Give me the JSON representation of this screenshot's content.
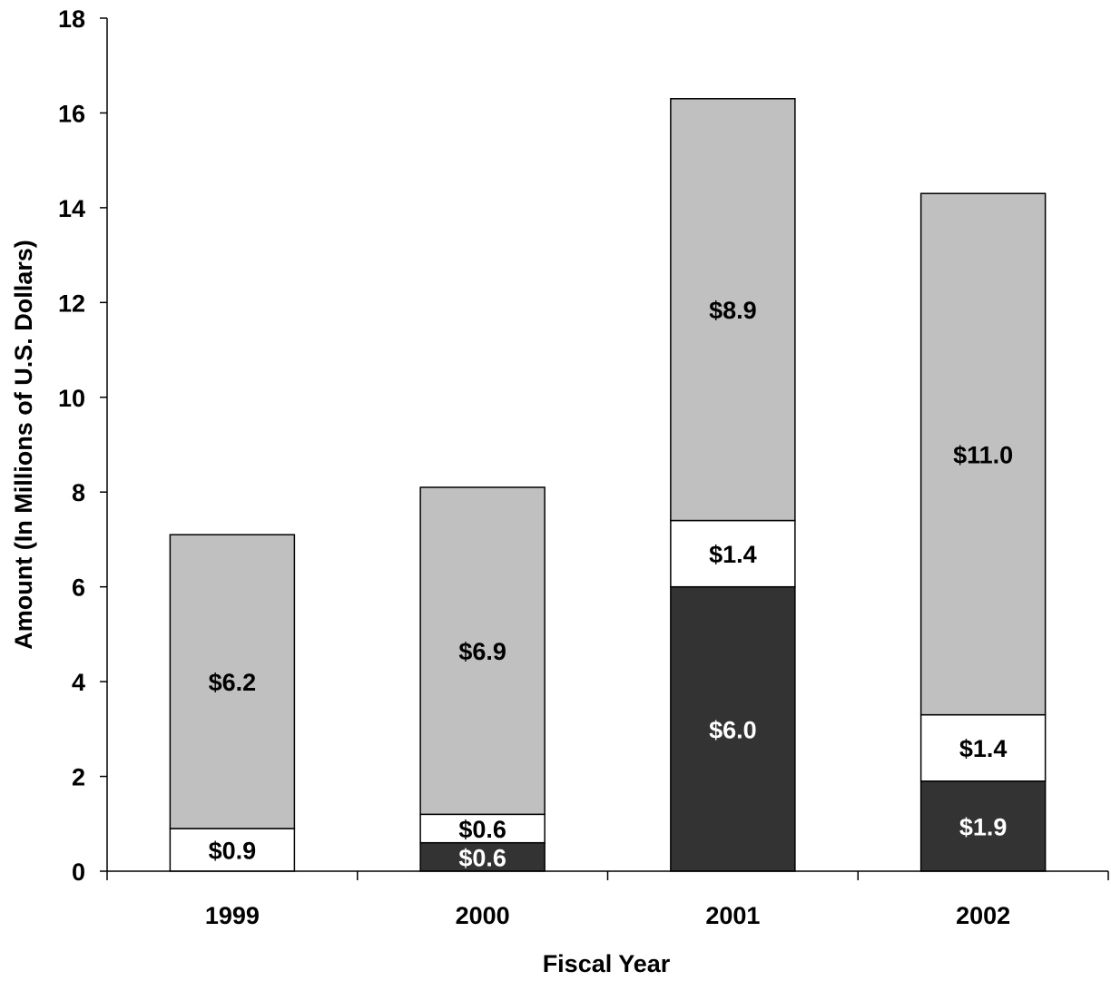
{
  "chart_data": {
    "type": "bar",
    "stacked": true,
    "title": "",
    "xlabel": "Fiscal Year",
    "ylabel": "Amount (In Millions of U.S. Dollars)",
    "ylim": [
      0,
      18
    ],
    "yticks": [
      "0",
      "2",
      "4",
      "6",
      "8",
      "10",
      "12",
      "14",
      "16",
      "18"
    ],
    "categories": [
      "1999",
      "2000",
      "2001",
      "2002"
    ],
    "grid": false,
    "legend": "none",
    "series": [
      {
        "color": "#333333",
        "label_color": "#ffffff",
        "values": [
          0,
          0.6,
          6.0,
          1.9
        ],
        "labels": [
          "",
          "$0.6",
          "$6.0",
          "$1.9"
        ]
      },
      {
        "color": "#ffffff",
        "label_color": "#000000",
        "values": [
          0.9,
          0.6,
          1.4,
          1.4
        ],
        "labels": [
          "$0.9",
          "$0.6",
          "$1.4",
          "$1.4"
        ]
      },
      {
        "color": "#c0c0c0",
        "label_color": "#000000",
        "values": [
          6.2,
          6.9,
          8.9,
          11.0
        ],
        "labels": [
          "$6.2",
          "$6.9",
          "$8.9",
          "$11.0"
        ]
      }
    ]
  }
}
